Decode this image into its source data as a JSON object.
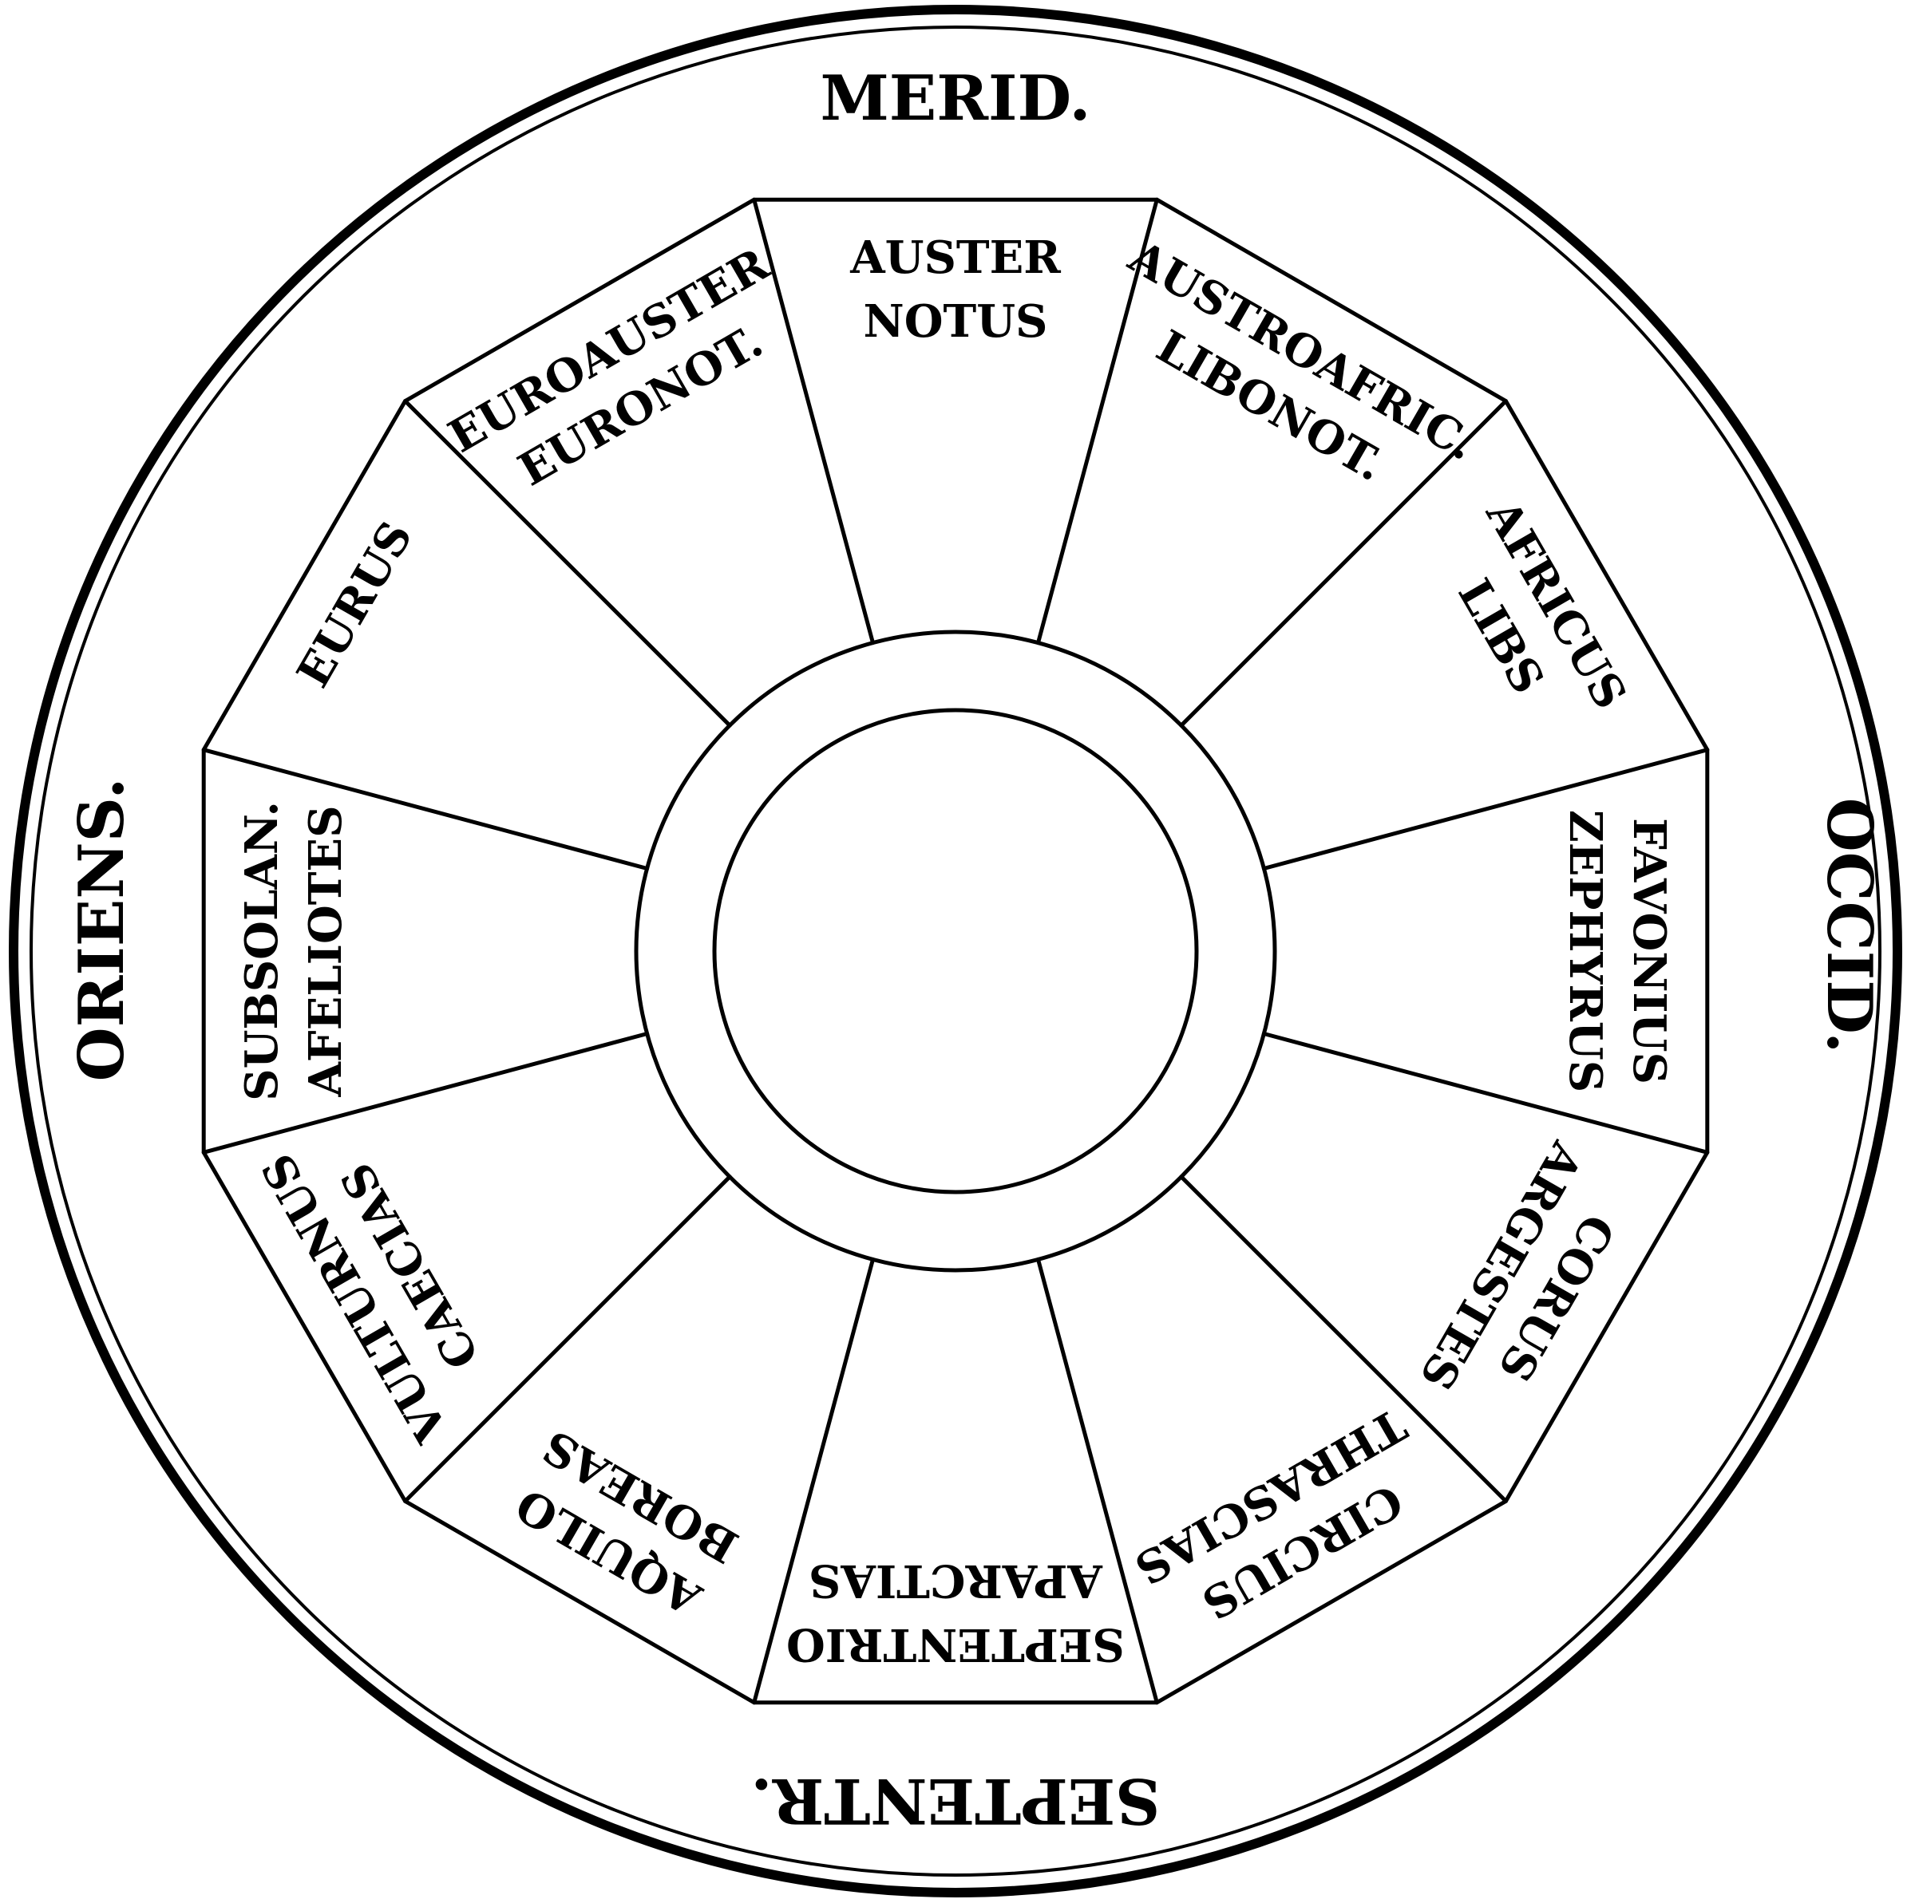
{
  "cardinals": {
    "south": "MERID.",
    "west": "OCCID.",
    "north": "SEPTENTR.",
    "east": "ORIENS."
  },
  "winds": [
    {
      "line1": "AUSTER",
      "line2": "NOTUS"
    },
    {
      "line1": "AUSTROAFRIC.",
      "line2": "LIBONOT."
    },
    {
      "line1": "AFRICUS",
      "line2": "LIBS"
    },
    {
      "line1": "FAVONIUS",
      "line2": "ZEPHYRUS"
    },
    {
      "line1": "CORUS",
      "line2": "ARGESTES"
    },
    {
      "line1": "CIRCIUS",
      "line2": "THRASCIAS"
    },
    {
      "line1": "SEPTENTRIO",
      "line2": "APARCTIAS"
    },
    {
      "line1": "AQUILO",
      "line2": "BOREAS"
    },
    {
      "line1": "VULTURNUS",
      "line2": "CAECIAS"
    },
    {
      "line1": "SUBSOLAN.",
      "line2": "AFELIOTES"
    },
    {
      "line1": "EURUS",
      "line2": ""
    },
    {
      "line1": "EUROAUSTER",
      "line2": "EURONOT."
    }
  ]
}
